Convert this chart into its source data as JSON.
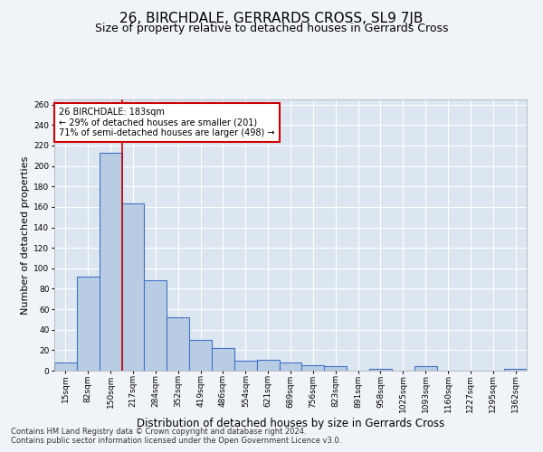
{
  "title": "26, BIRCHDALE, GERRARDS CROSS, SL9 7JB",
  "subtitle": "Size of property relative to detached houses in Gerrards Cross",
  "xlabel": "Distribution of detached houses by size in Gerrards Cross",
  "ylabel": "Number of detached properties",
  "categories": [
    "15sqm",
    "82sqm",
    "150sqm",
    "217sqm",
    "284sqm",
    "352sqm",
    "419sqm",
    "486sqm",
    "554sqm",
    "621sqm",
    "689sqm",
    "756sqm",
    "823sqm",
    "891sqm",
    "958sqm",
    "1025sqm",
    "1093sqm",
    "1160sqm",
    "1227sqm",
    "1295sqm",
    "1362sqm"
  ],
  "values": [
    8,
    92,
    213,
    163,
    88,
    52,
    30,
    22,
    10,
    11,
    8,
    5,
    4,
    0,
    2,
    0,
    4,
    0,
    0,
    0,
    2
  ],
  "bar_color": "#b8cce4",
  "bar_edgecolor": "#4472c4",
  "bar_linewidth": 0.8,
  "redline_index": 2,
  "redline_color": "#cc0000",
  "annotation_text": "26 BIRCHDALE: 183sqm\n← 29% of detached houses are smaller (201)\n71% of semi-detached houses are larger (498) →",
  "annotation_box_edgecolor": "#cc0000",
  "annotation_box_facecolor": "#ffffff",
  "ylim": [
    0,
    265
  ],
  "yticks": [
    0,
    20,
    40,
    60,
    80,
    100,
    120,
    140,
    160,
    180,
    200,
    220,
    240,
    260
  ],
  "fig_facecolor": "#f0f4f8",
  "background_color": "#dce6f0",
  "grid_color": "#ffffff",
  "footnote1": "Contains HM Land Registry data © Crown copyright and database right 2024.",
  "footnote2": "Contains public sector information licensed under the Open Government Licence v3.0.",
  "title_fontsize": 11,
  "subtitle_fontsize": 9,
  "xlabel_fontsize": 8.5,
  "ylabel_fontsize": 8,
  "tick_fontsize": 6.5,
  "footnote_fontsize": 6
}
